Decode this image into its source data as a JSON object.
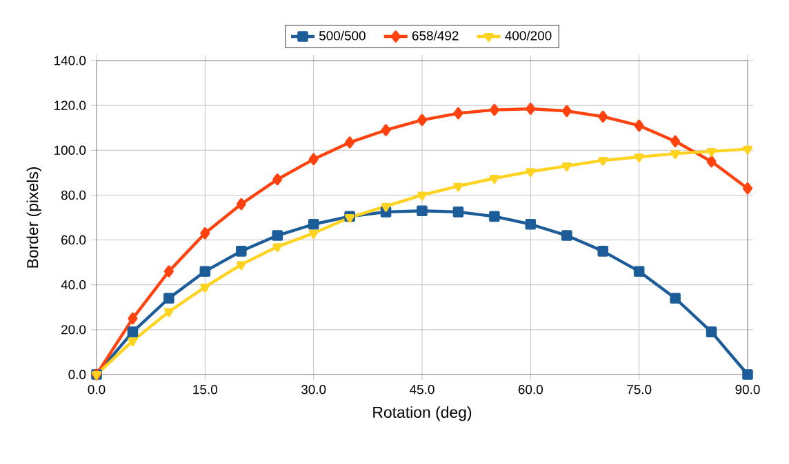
{
  "chart_data": {
    "type": "line",
    "xlabel": "Rotation (deg)",
    "ylabel": "Border (pixels)",
    "x": [
      0,
      5,
      10,
      15,
      20,
      25,
      30,
      35,
      40,
      45,
      50,
      55,
      60,
      65,
      70,
      75,
      80,
      85,
      90
    ],
    "series": [
      {
        "name": "500/500",
        "color": "#1c5d99",
        "marker": "square",
        "values": [
          0,
          19,
          34,
          46,
          55,
          62,
          67,
          70.5,
          72.5,
          73,
          72.5,
          70.5,
          67,
          62,
          55,
          46,
          34,
          19,
          0
        ]
      },
      {
        "name": "658/492",
        "color": "#ff420e",
        "marker": "diamond",
        "values": [
          0,
          25,
          46,
          63,
          76,
          87,
          96,
          103.5,
          109,
          113.5,
          116.5,
          118,
          118.5,
          117.5,
          115,
          111,
          104,
          95,
          83
        ]
      },
      {
        "name": "400/200",
        "color": "#ffd320",
        "marker": "triangle-down",
        "values": [
          0,
          15,
          28,
          39,
          49,
          57,
          63,
          70,
          75,
          80,
          84,
          87.5,
          90.5,
          93,
          95.5,
          97,
          98.5,
          99.5,
          100.5
        ]
      }
    ],
    "xlim": [
      0,
      90
    ],
    "ylim": [
      0,
      140
    ],
    "xticks": [
      {
        "value": 0,
        "label": "0.0"
      },
      {
        "value": 15,
        "label": "15.0"
      },
      {
        "value": 30,
        "label": "30.0"
      },
      {
        "value": 45,
        "label": "45.0"
      },
      {
        "value": 60,
        "label": "60.0"
      },
      {
        "value": 75,
        "label": "75.0"
      },
      {
        "value": 90,
        "label": "90.0"
      }
    ],
    "yticks": [
      {
        "value": 0,
        "label": "0.0"
      },
      {
        "value": 20,
        "label": "20.0"
      },
      {
        "value": 40,
        "label": "40.0"
      },
      {
        "value": 60,
        "label": "60.0"
      },
      {
        "value": 80,
        "label": "80.0"
      },
      {
        "value": 100,
        "label": "100.0"
      },
      {
        "value": 120,
        "label": "120.0"
      },
      {
        "value": 140,
        "label": "140.0"
      }
    ],
    "grid": true,
    "legend": "top",
    "line_style": "solid"
  }
}
